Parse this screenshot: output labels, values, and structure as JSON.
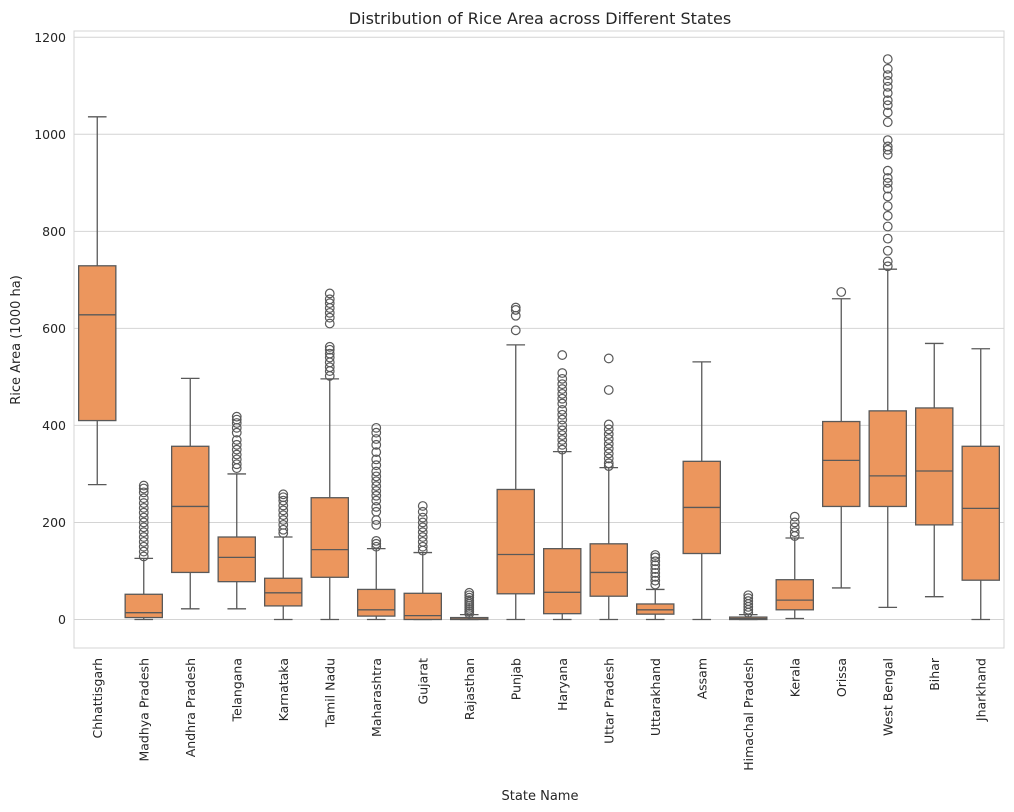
{
  "chart_data": {
    "type": "box",
    "title": "Distribution of Rice Area across Different States",
    "xlabel": "State Name",
    "ylabel": "Rice Area (1000 ha)",
    "ylim": [
      -60,
      1215
    ],
    "yticks": [
      0,
      200,
      400,
      600,
      800,
      1000,
      1200
    ],
    "grid": true,
    "colors": {
      "box": "#EC965D",
      "line": "#595959",
      "grid": "#d4d4d4"
    },
    "categories": [
      "Chhattisgarh",
      "Madhya Pradesh",
      "Andhra Pradesh",
      "Telangana",
      "Karnataka",
      "Tamil Nadu",
      "Maharashtra",
      "Gujarat",
      "Rajasthan",
      "Punjab",
      "Haryana",
      "Uttar Pradesh",
      "Uttarakhand",
      "Assam",
      "Himachal Pradesh",
      "Kerala",
      "Orissa",
      "West Bengal",
      "Bihar",
      "Jharkhand"
    ],
    "boxes": [
      {
        "whislo": 278,
        "q1": 410,
        "med": 628,
        "q3": 729,
        "whishi": 1036,
        "fliers": []
      },
      {
        "whislo": 0,
        "q1": 4,
        "med": 14,
        "q3": 52,
        "whishi": 126,
        "fliers": [
          130,
          140,
          150,
          160,
          170,
          180,
          190,
          200,
          210,
          220,
          230,
          240,
          250,
          262,
          270,
          276
        ]
      },
      {
        "whislo": 22,
        "q1": 97,
        "med": 233,
        "q3": 357,
        "whishi": 497,
        "fliers": []
      },
      {
        "whislo": 22,
        "q1": 78,
        "med": 128,
        "q3": 170,
        "whishi": 300,
        "fliers": [
          312,
          320,
          330,
          340,
          350,
          360,
          370,
          385,
          395,
          405,
          412,
          418
        ]
      },
      {
        "whislo": 0,
        "q1": 28,
        "med": 55,
        "q3": 85,
        "whishi": 170,
        "fliers": [
          178,
          185,
          195,
          205,
          215,
          225,
          235,
          245,
          252,
          258
        ]
      },
      {
        "whislo": 0,
        "q1": 87,
        "med": 144,
        "q3": 251,
        "whishi": 496,
        "fliers": [
          502,
          512,
          520,
          530,
          540,
          548,
          556,
          562,
          610,
          622,
          632,
          642,
          652,
          660,
          672
        ]
      },
      {
        "whislo": 0,
        "q1": 7,
        "med": 20,
        "q3": 62,
        "whishi": 146,
        "fliers": [
          150,
          156,
          162,
          195,
          205,
          222,
          232,
          245,
          255,
          265,
          275,
          285,
          295,
          305,
          318,
          330,
          345,
          360,
          372,
          385,
          395
        ]
      },
      {
        "whislo": 0,
        "q1": 0,
        "med": 8,
        "q3": 54,
        "whishi": 138,
        "fliers": [
          142,
          150,
          160,
          170,
          180,
          190,
          200,
          210,
          222,
          234
        ]
      },
      {
        "whislo": 0,
        "q1": 0,
        "med": 1,
        "q3": 4,
        "whishi": 10,
        "fliers": [
          12,
          16,
          20,
          24,
          28,
          32,
          36,
          40,
          45,
          50,
          55
        ]
      },
      {
        "whislo": 0,
        "q1": 53,
        "med": 134,
        "q3": 268,
        "whishi": 566,
        "fliers": [
          596,
          626,
          638,
          643
        ]
      },
      {
        "whislo": 0,
        "q1": 12,
        "med": 56,
        "q3": 146,
        "whishi": 346,
        "fliers": [
          350,
          360,
          370,
          380,
          390,
          400,
          412,
          422,
          432,
          445,
          455,
          465,
          475,
          485,
          496,
          508,
          545
        ]
      },
      {
        "whislo": 0,
        "q1": 48,
        "med": 97,
        "q3": 156,
        "whishi": 313,
        "fliers": [
          316,
          322,
          332,
          342,
          352,
          362,
          372,
          382,
          392,
          402,
          473,
          538
        ]
      },
      {
        "whislo": 0,
        "q1": 11,
        "med": 20,
        "q3": 32,
        "whishi": 62,
        "fliers": [
          72,
          80,
          88,
          96,
          104,
          112,
          120,
          128,
          133
        ]
      },
      {
        "whislo": 0,
        "q1": 136,
        "med": 231,
        "q3": 326,
        "whishi": 531,
        "fliers": []
      },
      {
        "whislo": 0,
        "q1": 0,
        "med": 2,
        "q3": 5,
        "whishi": 10,
        "fliers": [
          14,
          20,
          26,
          32,
          38,
          44,
          50
        ]
      },
      {
        "whislo": 2,
        "q1": 20,
        "med": 40,
        "q3": 82,
        "whishi": 168,
        "fliers": [
          172,
          180,
          190,
          200,
          212
        ]
      },
      {
        "whislo": 65,
        "q1": 233,
        "med": 328,
        "q3": 408,
        "whishi": 661,
        "fliers": [
          675
        ]
      },
      {
        "whislo": 25,
        "q1": 233,
        "med": 296,
        "q3": 430,
        "whishi": 722,
        "fliers": [
          728,
          738,
          760,
          785,
          810,
          832,
          852,
          872,
          888,
          900,
          910,
          925,
          958,
          968,
          975,
          988,
          1025,
          1045,
          1060,
          1070,
          1085,
          1098,
          1110,
          1122,
          1135,
          1155
        ]
      },
      {
        "whislo": 47,
        "q1": 195,
        "med": 306,
        "q3": 436,
        "whishi": 569,
        "fliers": []
      },
      {
        "whislo": 0,
        "q1": 81,
        "med": 229,
        "q3": 357,
        "whishi": 558,
        "fliers": []
      }
    ]
  }
}
